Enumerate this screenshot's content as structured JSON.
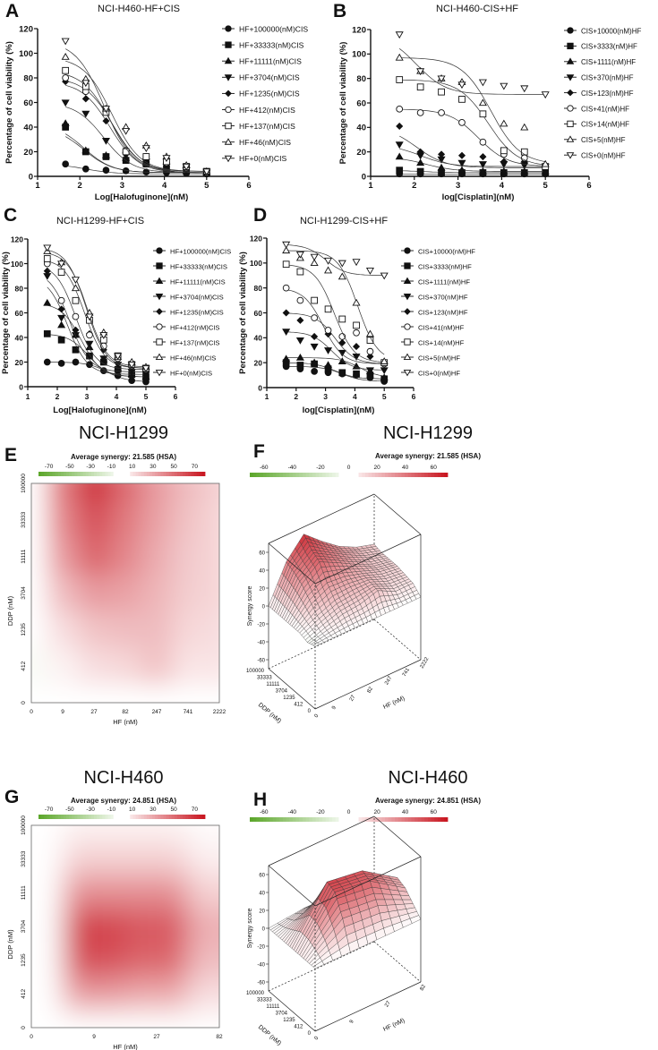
{
  "panel_labels": [
    "A",
    "B",
    "C",
    "D",
    "E",
    "F",
    "G",
    "H"
  ],
  "chart_data": [
    {
      "id": "A",
      "type": "scatter",
      "fit": "sigmoid",
      "title": "NCI-H460-HF+CIS",
      "xlabel": "Log[Halofuginone](nM)",
      "ylabel": "Percentage of cell viability (%)",
      "xlim": [
        1,
        6
      ],
      "ylim": [
        0,
        120
      ],
      "xticks": [
        1,
        2,
        3,
        4,
        5,
        6
      ],
      "yticks": [
        0,
        20,
        40,
        60,
        80,
        100,
        120
      ],
      "legend_position": "right",
      "x": [
        1.66,
        2.14,
        2.62,
        3.09,
        3.57,
        4.05,
        4.52,
        5.0
      ],
      "series": [
        {
          "name": "HF+100000(nM)CIS",
          "marker": "circle-filled",
          "values": [
            10,
            6,
            5,
            4.5,
            3.5,
            3,
            2.5,
            2
          ]
        },
        {
          "name": "HF+33333(nM)CIS",
          "marker": "square-filled",
          "values": [
            40,
            20,
            16,
            13,
            10,
            6,
            4,
            3
          ]
        },
        {
          "name": "HF+11111(nM)CIS",
          "marker": "triangle-filled",
          "values": [
            43,
            21,
            17,
            15,
            11,
            7,
            5,
            3
          ]
        },
        {
          "name": "HF+3704(nM)CIS",
          "marker": "triangle-down-filled",
          "values": [
            60,
            51,
            29,
            17,
            12,
            8,
            5,
            3
          ]
        },
        {
          "name": "HF+1235(nM)CIS",
          "marker": "diamond-filled",
          "values": [
            77,
            63,
            45,
            20,
            14,
            8,
            5,
            3
          ]
        },
        {
          "name": "HF+412(nM)CIS",
          "marker": "circle-open",
          "values": [
            80,
            69,
            53,
            21,
            16,
            11,
            7,
            3
          ]
        },
        {
          "name": "HF+137(nM)CIS",
          "marker": "square-open",
          "values": [
            86,
            73,
            52,
            20,
            16,
            12,
            8,
            4
          ]
        },
        {
          "name": "HF+46(nM)CIS",
          "marker": "triangle-open",
          "values": [
            97,
            79,
            55,
            40,
            25,
            16,
            9,
            4
          ]
        },
        {
          "name": "HF+0(nM)CIS",
          "marker": "triangle-down-open",
          "values": [
            110,
            76,
            55,
            37,
            23,
            15,
            8,
            4
          ]
        }
      ]
    },
    {
      "id": "B",
      "type": "scatter",
      "fit": "sigmoid",
      "title": "NCI-H460-CIS+HF",
      "xlabel": "log[Cisplatin](nM)",
      "ylabel": "Percentage of cell viability (%)",
      "xlim": [
        1,
        6
      ],
      "ylim": [
        0,
        120
      ],
      "xticks": [
        1,
        2,
        3,
        4,
        5,
        6
      ],
      "yticks": [
        0,
        20,
        40,
        60,
        80,
        100,
        120
      ],
      "legend_position": "right",
      "x": [
        1.66,
        2.14,
        2.62,
        3.09,
        3.57,
        4.05,
        4.52,
        5.0
      ],
      "series": [
        {
          "name": "CIS+10000(nM)HF",
          "marker": "circle-filled",
          "values": [
            2,
            2,
            2,
            2,
            2,
            2,
            2,
            2
          ]
        },
        {
          "name": "CIS+3333(nM)HF",
          "marker": "square-filled",
          "values": [
            5,
            4,
            3,
            3,
            3,
            3,
            3,
            3
          ]
        },
        {
          "name": "CIS+1111(nM)HF",
          "marker": "triangle-filled",
          "values": [
            16,
            11,
            7,
            5,
            4,
            4,
            4,
            4
          ]
        },
        {
          "name": "CIS+370(nM)HF",
          "marker": "triangle-down-filled",
          "values": [
            26,
            17,
            14,
            11,
            10,
            10,
            9,
            8
          ]
        },
        {
          "name": "CIS+123(nM)HF",
          "marker": "diamond-filled",
          "values": [
            41,
            20,
            18,
            17,
            16,
            12,
            12,
            7
          ]
        },
        {
          "name": "CIS+41(nM)HF",
          "marker": "circle-open",
          "values": [
            55,
            52,
            52,
            44,
            28,
            18,
            15,
            8
          ]
        },
        {
          "name": "CIS+14(nM)HF",
          "marker": "square-open",
          "values": [
            79,
            73,
            69,
            63,
            51,
            21,
            20,
            8
          ]
        },
        {
          "name": "CIS+5(nM)HF",
          "marker": "triangle-open",
          "values": [
            97,
            86,
            80,
            77,
            60,
            43,
            40,
            10
          ]
        },
        {
          "name": "CIS+0(nM)HF",
          "marker": "triangle-down-open",
          "values": [
            116,
            86,
            80,
            75,
            77,
            74,
            72,
            67
          ]
        }
      ]
    },
    {
      "id": "C",
      "type": "scatter",
      "fit": "sigmoid",
      "title": "NCI-H1299-HF+CIS",
      "xlabel": "Log[Halofuginone](nM)",
      "ylabel": "Percentage of cell viability (%)",
      "xlim": [
        1,
        6
      ],
      "ylim": [
        0,
        120
      ],
      "xticks": [
        1,
        2,
        3,
        4,
        5,
        6
      ],
      "yticks": [
        0,
        20,
        40,
        60,
        80,
        100,
        120
      ],
      "legend_position": "right",
      "x": [
        1.66,
        2.14,
        2.62,
        3.09,
        3.57,
        4.05,
        4.52,
        5.0
      ],
      "series": [
        {
          "name": "HF+100000(nM)CIS",
          "marker": "circle-filled",
          "values": [
            20,
            19,
            20,
            18,
            13,
            9,
            5,
            4
          ]
        },
        {
          "name": "HF+33333(nM)CIS",
          "marker": "square-filled",
          "values": [
            43,
            38,
            30,
            25,
            20,
            14,
            10,
            8
          ]
        },
        {
          "name": "HF+11111(nM)CIS",
          "marker": "triangle-filled",
          "values": [
            68,
            50,
            42,
            32,
            22,
            15,
            10,
            8
          ]
        },
        {
          "name": "HF+3704(nM)CIS",
          "marker": "triangle-down-filled",
          "values": [
            90,
            56,
            42,
            35,
            23,
            18,
            12,
            10
          ]
        },
        {
          "name": "HF+1235(nM)CIS",
          "marker": "diamond-filled",
          "values": [
            94,
            63,
            46,
            43,
            30,
            22,
            14,
            12
          ]
        },
        {
          "name": "HF+412(nM)CIS",
          "marker": "circle-open",
          "values": [
            100,
            70,
            57,
            42,
            33,
            23,
            17,
            14
          ]
        },
        {
          "name": "HF+137(nM)CIS",
          "marker": "square-open",
          "values": [
            104,
            93,
            70,
            54,
            38,
            25,
            18,
            15
          ]
        },
        {
          "name": "HF+46(nM)CIS",
          "marker": "triangle-open",
          "values": [
            110,
            101,
            80,
            60,
            44,
            24,
            20,
            16
          ]
        },
        {
          "name": "HF+0(nM)CIS",
          "marker": "triangle-down-open",
          "values": [
            113,
            100,
            87,
            57,
            42,
            25,
            18,
            15
          ]
        }
      ]
    },
    {
      "id": "D",
      "type": "scatter",
      "fit": "sigmoid",
      "title": "NCI-H1299-CIS+HF",
      "xlabel": "log[Cisplatin](nM)",
      "ylabel": "Percentage of cell viability (%)",
      "xlim": [
        1,
        6
      ],
      "ylim": [
        0,
        120
      ],
      "xticks": [
        1,
        2,
        3,
        4,
        5,
        6
      ],
      "yticks": [
        0,
        20,
        40,
        60,
        80,
        100,
        120
      ],
      "legend_position": "right",
      "x": [
        1.66,
        2.14,
        2.62,
        3.09,
        3.57,
        4.05,
        4.52,
        5.0
      ],
      "series": [
        {
          "name": "CIS+10000(nM)HF",
          "marker": "circle-filled",
          "values": [
            17,
            15,
            13,
            12,
            11,
            10,
            8,
            5
          ]
        },
        {
          "name": "CIS+3333(nM)HF",
          "marker": "square-filled",
          "values": [
            20,
            18,
            19,
            15,
            12,
            11,
            10,
            7
          ]
        },
        {
          "name": "CIS+1111(nM)HF",
          "marker": "triangle-filled",
          "values": [
            23,
            24,
            20,
            18,
            21,
            17,
            13,
            8
          ]
        },
        {
          "name": "CIS+370(nM)HF",
          "marker": "triangle-down-filled",
          "values": [
            45,
            38,
            33,
            30,
            28,
            25,
            14,
            14
          ]
        },
        {
          "name": "CIS+123(nM)HF",
          "marker": "diamond-filled",
          "values": [
            60,
            54,
            41,
            43,
            36,
            33,
            25,
            19
          ]
        },
        {
          "name": "CIS+41(nM)HF",
          "marker": "circle-open",
          "values": [
            80,
            70,
            56,
            46,
            41,
            44,
            29,
            19
          ]
        },
        {
          "name": "CIS+14(nM)HF",
          "marker": "square-open",
          "values": [
            99,
            93,
            70,
            63,
            55,
            50,
            38,
            20
          ]
        },
        {
          "name": "CIS+5(nM)HF",
          "marker": "triangle-open",
          "values": [
            110,
            104,
            100,
            94,
            89,
            68,
            43,
            21
          ]
        },
        {
          "name": "CIS+0(nM)HF",
          "marker": "triangle-down-open",
          "values": [
            115,
            107,
            105,
            102,
            100,
            101,
            94,
            90
          ]
        }
      ]
    },
    {
      "id": "E",
      "type": "heatmap",
      "title": "NCI-H1299",
      "subtitle": "Average synergy: 21.585 (HSA)",
      "xlabel": "HF (nM)",
      "ylabel": "DDP (nM)",
      "x_ticks": [
        "0",
        "9",
        "27",
        "82",
        "247",
        "741",
        "2222"
      ],
      "y_ticks": [
        "100000",
        "33333",
        "11111",
        "3704",
        "1235",
        "412",
        "0"
      ],
      "colorbar_ticks": [
        "-70",
        "-50",
        "-30",
        "-10",
        "10",
        "30",
        "50",
        "70"
      ],
      "colorbar_range": [
        -70,
        70
      ],
      "colors": {
        "negative": "#5aa628",
        "neutral": "#ffffff",
        "positive": "#c8141e"
      },
      "values": [
        [
          0,
          40,
          62,
          45,
          30,
          20,
          14
        ],
        [
          0,
          36,
          52,
          40,
          28,
          18,
          12
        ],
        [
          0,
          30,
          46,
          36,
          25,
          16,
          12
        ],
        [
          0,
          20,
          30,
          28,
          22,
          15,
          12
        ],
        [
          0,
          10,
          18,
          20,
          20,
          12,
          10
        ],
        [
          -3,
          4,
          10,
          12,
          18,
          8,
          8
        ],
        [
          0,
          0,
          0,
          0,
          0,
          0,
          0
        ]
      ]
    },
    {
      "id": "F",
      "type": "surface",
      "title": "NCI-H1299",
      "subtitle": "Average synergy: 21.585 (HSA)",
      "xlabel": "HF (nM)",
      "ylabel": "DDP (nM)",
      "zlabel": "Synergy score",
      "x_ticks": [
        "0",
        "9",
        "27",
        "82",
        "247",
        "741",
        "2222"
      ],
      "y_ticks": [
        "100000",
        "33333",
        "11111",
        "3704",
        "1235",
        "412",
        "0"
      ],
      "z_ticks": [
        "60",
        "40",
        "20",
        "0",
        "-20",
        "-40",
        "-60"
      ],
      "colorbar_ticks": [
        "-60",
        "-40",
        "-20",
        "0",
        "20",
        "40",
        "60"
      ],
      "colorbar_range": [
        -70,
        70
      ],
      "source": "E"
    },
    {
      "id": "G",
      "type": "heatmap",
      "title": "NCI-H460",
      "subtitle": "Average synergy: 24.851 (HSA)",
      "xlabel": "HF (nM)",
      "ylabel": "DDP (nM)",
      "x_ticks": [
        "0",
        "9",
        "27",
        "82"
      ],
      "y_ticks": [
        "100000",
        "33333",
        "11111",
        "3704",
        "1235",
        "412",
        "0"
      ],
      "colorbar_ticks": [
        "-70",
        "-50",
        "-30",
        "-10",
        "10",
        "30",
        "50",
        "70"
      ],
      "colorbar_range": [
        -70,
        70
      ],
      "colors": {
        "negative": "#5aa628",
        "neutral": "#ffffff",
        "positive": "#c8141e"
      },
      "values": [
        [
          0,
          4,
          4,
          1
        ],
        [
          0,
          14,
          14,
          5
        ],
        [
          0,
          34,
          34,
          14
        ],
        [
          0,
          56,
          50,
          24
        ],
        [
          0,
          52,
          46,
          20
        ],
        [
          0,
          30,
          26,
          10
        ],
        [
          0,
          0,
          0,
          0
        ]
      ]
    },
    {
      "id": "H",
      "type": "surface",
      "title": "NCI-H460",
      "subtitle": "Average synergy: 24.851 (HSA)",
      "xlabel": "HF (nM)",
      "ylabel": "DDP (nM)",
      "zlabel": "Synergy score",
      "x_ticks": [
        "0",
        "9",
        "27",
        "82"
      ],
      "y_ticks": [
        "100000",
        "33333",
        "11111",
        "3704",
        "1235",
        "412",
        "0"
      ],
      "z_ticks": [
        "60",
        "40",
        "20",
        "0",
        "-20",
        "-40",
        "-60"
      ],
      "colorbar_ticks": [
        "-60",
        "-40",
        "-20",
        "0",
        "20",
        "40",
        "60"
      ],
      "colorbar_range": [
        -70,
        70
      ],
      "source": "G"
    }
  ]
}
